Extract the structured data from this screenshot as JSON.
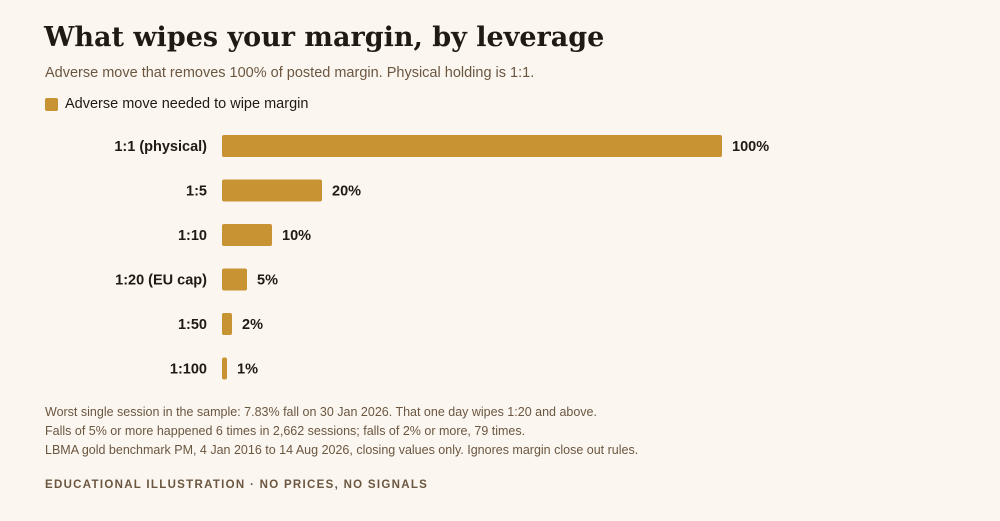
{
  "title": "What wipes your margin, by leverage",
  "subtitle": "Adverse move that removes 100% of posted margin. Physical holding is 1:1.",
  "colors": {
    "bar": "#c89333",
    "background": "#fbf7f0"
  },
  "chart_data": {
    "type": "bar",
    "orientation": "horizontal",
    "categories": [
      "1:1 (physical)",
      "1:5",
      "1:10",
      "1:20 (EU cap)",
      "1:50",
      "1:100"
    ],
    "series": [
      {
        "name": "Adverse move needed to wipe margin",
        "values": [
          100,
          20,
          10,
          5,
          2,
          1
        ],
        "labels": [
          "100%",
          "20%",
          "10%",
          "5%",
          "2%",
          "1%"
        ]
      }
    ],
    "xlim": [
      0,
      100
    ],
    "grid": false,
    "legend": "top-left"
  },
  "notes": [
    "Worst single session in the sample: 7.83% fall on 30 Jan 2026. That one day wipes 1:20 and above.",
    "Falls of 5% or more happened 6 times in 2,662 sessions; falls of 2% or more, 79 times.",
    "LBMA gold benchmark PM, 4 Jan 2016 to 14 Aug 2026, closing values only. Ignores margin close out rules."
  ],
  "footer": "EDUCATIONAL ILLUSTRATION · NO PRICES, NO SIGNALS"
}
